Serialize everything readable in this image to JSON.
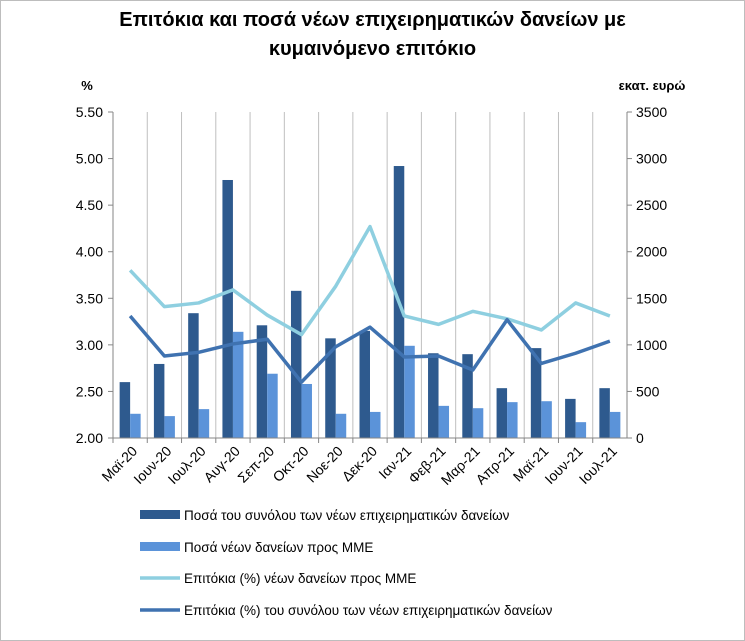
{
  "chart_data": {
    "type": "bar+line",
    "title_line1": "Επιτόκια και ποσά νέων επιχειρηματικών δανείων με",
    "title_line2": "κυμαινόμενο επιτόκιο",
    "ylabel_left": "%",
    "ylabel_right": "εκατ. ευρώ",
    "ylim_left": [
      2.0,
      5.5
    ],
    "ylim_right": [
      0,
      3500
    ],
    "yticks_left": [
      "2.00",
      "2.50",
      "3.00",
      "3.50",
      "4.00",
      "4.50",
      "5.00",
      "5.50"
    ],
    "yticks_right": [
      "0",
      "500",
      "1000",
      "1500",
      "2000",
      "2500",
      "3000",
      "3500"
    ],
    "categories": [
      "Μαϊ-20",
      "Ιουν-20",
      "Ιουλ-20",
      "Αυγ-20",
      "Σεπ-20",
      "Οκτ-20",
      "Νοε-20",
      "Δεκ-20",
      "Ιαν-21",
      "Φεβ-21",
      "Μαρ-21",
      "Απρ-21",
      "Μαϊ-21",
      "Ιουν-21",
      "Ιουλ-21"
    ],
    "series": [
      {
        "name": "Ποσά του συνόλου των νέων επιχειρηματικών δανείων",
        "type": "bar",
        "axis": "right",
        "color": "#2e5a8e",
        "values": [
          600,
          795,
          1340,
          2770,
          1210,
          1580,
          1070,
          1150,
          2920,
          910,
          900,
          535,
          965,
          420,
          535
        ]
      },
      {
        "name": "Ποσά νέων δανείων προς ΜΜΕ",
        "type": "bar",
        "axis": "right",
        "color": "#5b93d9",
        "values": [
          260,
          235,
          310,
          1140,
          690,
          580,
          260,
          280,
          990,
          345,
          320,
          385,
          395,
          170,
          280
        ]
      },
      {
        "name": "Επιτόκια (%) νέων δανείων προς ΜΜΕ",
        "type": "line",
        "axis": "left",
        "color": "#8ecfe0",
        "values": [
          3.8,
          3.41,
          3.45,
          3.59,
          3.32,
          3.11,
          3.63,
          4.27,
          3.31,
          3.22,
          3.36,
          3.28,
          3.16,
          3.45,
          3.31
        ]
      },
      {
        "name": "Επιτόκια (%) του συνόλου των νέων επιχειρηματικών δανείων",
        "type": "line",
        "axis": "left",
        "color": "#3f72b0",
        "values": [
          3.31,
          2.88,
          2.92,
          3.01,
          3.06,
          2.6,
          2.98,
          3.19,
          2.87,
          2.88,
          2.73,
          3.27,
          2.8,
          2.91,
          3.04
        ]
      }
    ],
    "grid": "vertical",
    "legend_placement": "bottom"
  }
}
